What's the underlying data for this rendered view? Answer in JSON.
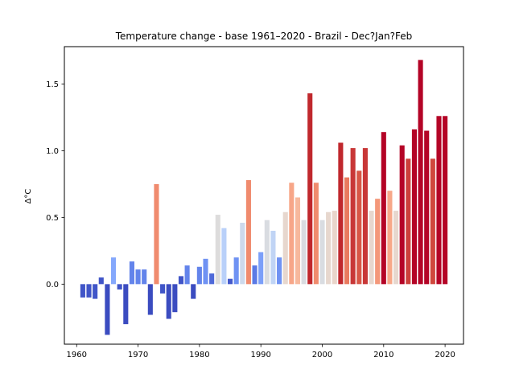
{
  "chart_data": {
    "type": "bar",
    "title": "Temperature change - base 1961–2020 - Brazil - Dec?Jan?Feb",
    "xlabel": "",
    "ylabel": "Δ°C",
    "xlim": [
      1958,
      2023
    ],
    "ylim": [
      -0.45,
      1.78
    ],
    "xticks": [
      1960,
      1970,
      1980,
      1990,
      2000,
      2010,
      2020
    ],
    "yticks": [
      0.0,
      0.5,
      1.0,
      1.5
    ],
    "ytick_labels": [
      "0.0",
      "0.5",
      "1.0",
      "1.5"
    ],
    "grid": false,
    "colormap": "coolwarm",
    "x": [
      1961,
      1962,
      1963,
      1964,
      1965,
      1966,
      1967,
      1968,
      1969,
      1970,
      1971,
      1972,
      1973,
      1974,
      1975,
      1976,
      1977,
      1978,
      1979,
      1980,
      1981,
      1982,
      1983,
      1984,
      1985,
      1986,
      1987,
      1988,
      1989,
      1990,
      1991,
      1992,
      1993,
      1994,
      1995,
      1996,
      1997,
      1998,
      1999,
      2000,
      2001,
      2002,
      2003,
      2004,
      2005,
      2006,
      2007,
      2008,
      2009,
      2010,
      2011,
      2012,
      2013,
      2014,
      2015,
      2016,
      2017,
      2018,
      2019,
      2020
    ],
    "values": [
      -0.1,
      -0.1,
      -0.11,
      0.05,
      -0.38,
      0.2,
      -0.04,
      -0.3,
      0.17,
      0.11,
      0.11,
      -0.23,
      0.75,
      -0.07,
      -0.26,
      -0.21,
      0.06,
      0.14,
      -0.11,
      0.13,
      0.19,
      0.08,
      0.52,
      0.42,
      0.04,
      0.2,
      0.46,
      0.78,
      0.14,
      0.24,
      0.48,
      0.4,
      0.2,
      0.54,
      0.76,
      0.65,
      0.48,
      1.43,
      0.76,
      0.48,
      0.54,
      0.55,
      1.06,
      0.8,
      1.02,
      0.85,
      1.02,
      0.55,
      0.64,
      1.14,
      0.7,
      0.55,
      1.04,
      0.94,
      1.16,
      1.68,
      1.15,
      0.94,
      1.26,
      1.26
    ],
    "colors": [
      "#4055c8",
      "#4055c8",
      "#4055c8",
      "#4055c8",
      "#3b4cc0",
      "#85a8fc",
      "#4055c8",
      "#3b4cc0",
      "#6384eb",
      "#6384eb",
      "#6384eb",
      "#3b4cc0",
      "#f08b6e",
      "#4055c8",
      "#3b4cc0",
      "#3b4cc0",
      "#4055c8",
      "#6384eb",
      "#3b4cc0",
      "#6384eb",
      "#6f92f3",
      "#4f69d9",
      "#dddcdc",
      "#b9d0f9",
      "#4358cb",
      "#6f92f3",
      "#cdd9ec",
      "#f08b6e",
      "#5b7ae5",
      "#7b9ff9",
      "#d9dce1",
      "#c0d4f5",
      "#6f92f3",
      "#e7d7ce",
      "#f7a688",
      "#f7b89c",
      "#d9dce1",
      "#c0282d",
      "#f08b6e",
      "#d9dce1",
      "#e7d7ce",
      "#e9d5cb",
      "#c0282d",
      "#e97a5f",
      "#c83737",
      "#d85646",
      "#c83737",
      "#e7d7ce",
      "#f4987a",
      "#b40426",
      "#f7a889",
      "#e7d7ce",
      "#b40426",
      "#cc403a",
      "#b40426",
      "#b40426",
      "#b40426",
      "#d0473d",
      "#b40426",
      "#b40426"
    ]
  }
}
